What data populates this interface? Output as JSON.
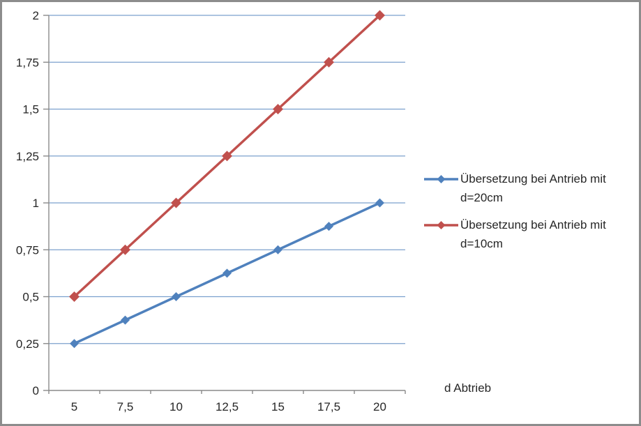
{
  "window": {
    "background": "#FFFFFF",
    "border_color": "#8C8C8C"
  },
  "chart_data": {
    "type": "line",
    "title": "",
    "xlabel": "d Abtrieb",
    "ylabel": "",
    "categories": [
      "5",
      "7,5",
      "10",
      "12,5",
      "15",
      "17,5",
      "20"
    ],
    "series": [
      {
        "name": "Übersetzung bei Antrieb mit d=20cm",
        "color": "#4F81BD",
        "marker": "diamond",
        "marker_size": 6.5,
        "values": [
          0.25,
          0.375,
          0.5,
          0.625,
          0.75,
          0.875,
          1
        ]
      },
      {
        "name": "Übersetzung bei Antrieb mit d=10cm",
        "color": "#C0504D",
        "marker": "diamond",
        "marker_size": 7.5,
        "values": [
          0.5,
          0.75,
          1,
          1.25,
          1.5,
          1.75,
          2
        ]
      }
    ],
    "ylim": [
      0,
      2
    ],
    "ytick_step": 0.25,
    "y_tick_labels": [
      "0",
      "0,25",
      "0,5",
      "0,75",
      "1",
      "1,25",
      "1,5",
      "1,75",
      "2"
    ],
    "grid": true,
    "legend_position": "right",
    "number_format": "decimal-comma",
    "colors": {
      "gridline": "#7BA0CD",
      "axis": "#8A8A8A",
      "text": "#262626"
    }
  }
}
